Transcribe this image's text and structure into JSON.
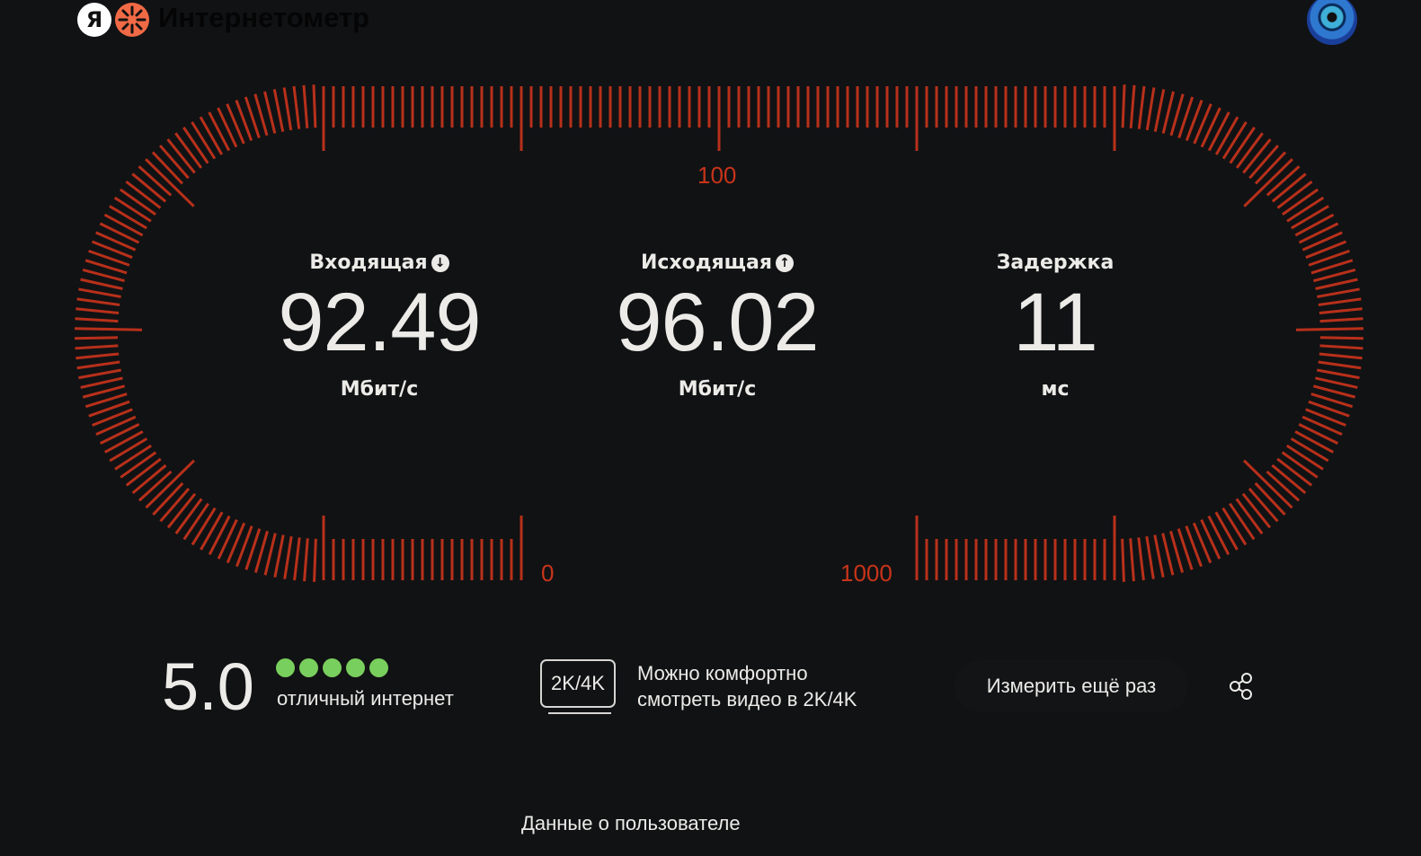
{
  "header": {
    "logo_letter": "Я",
    "title": "Интернетометр"
  },
  "colors": {
    "scale": "#b8301a",
    "rating_dot": "#79cf5d",
    "background": "#111214"
  },
  "gauge": {
    "labels": {
      "top": "100",
      "bottom_left": "0",
      "bottom_right": "1000"
    }
  },
  "metrics": [
    {
      "label": "Входящая",
      "icon": "arrow-down-icon",
      "value": "92.49",
      "unit": "Мбит/с"
    },
    {
      "label": "Исходящая",
      "icon": "arrow-up-icon",
      "value": "96.02",
      "unit": "Мбит/с"
    },
    {
      "label": "Задержка",
      "value": "11",
      "unit": "мс"
    }
  ],
  "rating": {
    "score": "5.0",
    "dots_filled": 5,
    "dots_total": 5,
    "text": "отличный интернет"
  },
  "video": {
    "badge": "2K/4K",
    "text_line1": "Можно комфортно",
    "text_line2": "смотреть видео в 2K/4K"
  },
  "actions": {
    "retry_label": "Измерить ещё раз",
    "share_icon": "share-icon"
  },
  "footer": {
    "user_data_link": "Данные о пользователе"
  }
}
